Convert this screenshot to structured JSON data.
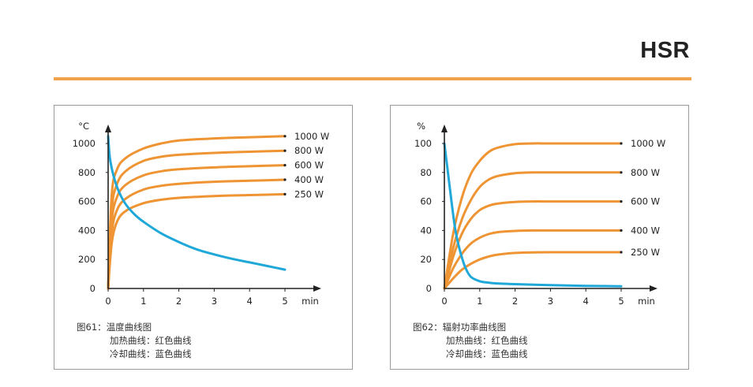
{
  "brand": "HSR",
  "colors": {
    "accent_rule": "#f0a24c",
    "heating": "#ee9433",
    "cooling": "#1fa8d8"
  },
  "chart_data": [
    {
      "type": "line",
      "ylabel": "°C",
      "xlabel": "min",
      "xlim": [
        0,
        5
      ],
      "ylim": [
        0,
        1000
      ],
      "x_ticks": [
        "0",
        "1",
        "2",
        "3",
        "4",
        "5"
      ],
      "y_ticks": [
        "0",
        "200",
        "400",
        "600",
        "800",
        "1000"
      ],
      "grid": false,
      "series": [
        {
          "name": "1000 W",
          "kind": "heating",
          "x": [
            0,
            0.1,
            0.25,
            0.5,
            1,
            1.5,
            2,
            3,
            4,
            5
          ],
          "y": [
            0,
            640,
            820,
            900,
            965,
            1000,
            1020,
            1035,
            1043,
            1050
          ]
        },
        {
          "name": "800 W",
          "kind": "heating",
          "x": [
            0,
            0.1,
            0.25,
            0.5,
            1,
            1.5,
            2,
            3,
            4,
            5
          ],
          "y": [
            0,
            540,
            720,
            810,
            880,
            908,
            922,
            935,
            943,
            950
          ]
        },
        {
          "name": "600 W",
          "kind": "heating",
          "x": [
            0,
            0.1,
            0.25,
            0.5,
            1,
            1.5,
            2,
            3,
            4,
            5
          ],
          "y": [
            0,
            460,
            630,
            715,
            780,
            808,
            822,
            835,
            843,
            850
          ]
        },
        {
          "name": "400 W",
          "kind": "heating",
          "x": [
            0,
            0.1,
            0.25,
            0.5,
            1,
            1.5,
            2,
            3,
            4,
            5
          ],
          "y": [
            0,
            380,
            540,
            620,
            682,
            708,
            722,
            736,
            743,
            750
          ]
        },
        {
          "name": "250 W",
          "kind": "heating",
          "x": [
            0,
            0.1,
            0.25,
            0.5,
            1,
            1.5,
            2,
            3,
            4,
            5
          ],
          "y": [
            0,
            310,
            460,
            535,
            588,
            612,
            625,
            637,
            644,
            650
          ]
        },
        {
          "name": "",
          "kind": "cooling",
          "x": [
            0,
            0.05,
            0.15,
            0.3,
            0.5,
            0.75,
            1,
            1.5,
            2,
            2.5,
            3,
            3.5,
            4,
            4.5,
            5
          ],
          "y": [
            1050,
            900,
            780,
            670,
            580,
            510,
            460,
            380,
            320,
            270,
            235,
            205,
            180,
            155,
            130
          ]
        }
      ],
      "caption": {
        "title": "图61：温度曲线图",
        "line2": "加热曲线：红色曲线",
        "line3": "冷却曲线：蓝色曲线"
      }
    },
    {
      "type": "line",
      "ylabel": "%",
      "xlabel": "min",
      "xlim": [
        0,
        5
      ],
      "ylim": [
        0,
        100
      ],
      "x_ticks": [
        "0",
        "1",
        "2",
        "3",
        "4",
        "5"
      ],
      "y_ticks": [
        "0",
        "20",
        "40",
        "60",
        "80",
        "100"
      ],
      "grid": false,
      "series": [
        {
          "name": "1000 W",
          "kind": "heating",
          "x": [
            0,
            0.25,
            0.5,
            0.75,
            1,
            1.25,
            1.5,
            2,
            2.5,
            3,
            4,
            5
          ],
          "y": [
            0,
            38,
            63,
            79,
            88,
            94,
            97,
            99.5,
            100,
            100,
            100,
            100
          ]
        },
        {
          "name": "800 W",
          "kind": "heating",
          "x": [
            0,
            0.25,
            0.5,
            0.75,
            1,
            1.25,
            1.5,
            2,
            2.5,
            3,
            4,
            5
          ],
          "y": [
            0,
            28,
            48,
            61,
            70,
            75,
            77.5,
            79.5,
            80,
            80,
            80,
            80
          ]
        },
        {
          "name": "600 W",
          "kind": "heating",
          "x": [
            0,
            0.25,
            0.5,
            0.75,
            1,
            1.25,
            1.5,
            2,
            2.5,
            3,
            4,
            5
          ],
          "y": [
            0,
            22,
            38,
            48,
            54,
            57,
            58.5,
            59.7,
            60,
            60,
            60,
            60
          ]
        },
        {
          "name": "400 W",
          "kind": "heating",
          "x": [
            0,
            0.25,
            0.5,
            0.75,
            1,
            1.25,
            1.5,
            2,
            2.5,
            3,
            4,
            5
          ],
          "y": [
            0,
            14,
            24,
            31,
            35,
            37.5,
            38.8,
            39.7,
            40,
            40,
            40,
            40
          ]
        },
        {
          "name": "250 W",
          "kind": "heating",
          "x": [
            0,
            0.25,
            0.5,
            0.75,
            1,
            1.25,
            1.5,
            2,
            2.5,
            3,
            4,
            5
          ],
          "y": [
            0,
            7,
            13,
            17,
            20,
            22,
            23.3,
            24.5,
            24.9,
            25,
            25,
            25
          ]
        },
        {
          "name": "",
          "kind": "cooling",
          "x": [
            0,
            0.1,
            0.2,
            0.3,
            0.4,
            0.5,
            0.6,
            0.75,
            1,
            1.25,
            1.5,
            2,
            3,
            4,
            5
          ],
          "y": [
            100,
            80,
            60,
            42,
            30,
            21,
            14,
            8,
            5,
            4,
            3.5,
            3,
            2.3,
            1.8,
            1.5
          ]
        }
      ],
      "caption": {
        "title": "图62：辐射功率曲线图",
        "line2": "加热曲线：红色曲线",
        "line3": "冷却曲线：蓝色曲线"
      }
    }
  ]
}
